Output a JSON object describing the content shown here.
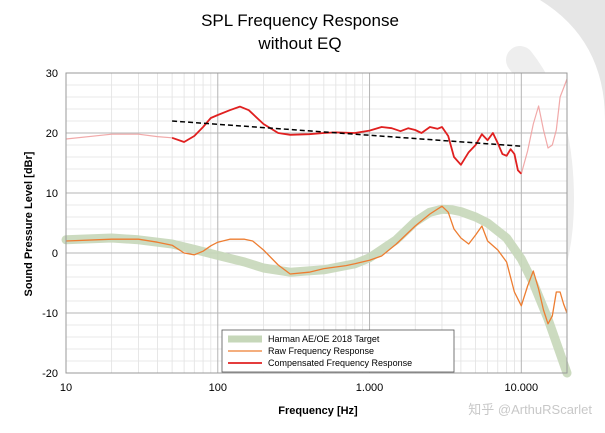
{
  "chart_data": {
    "type": "line",
    "title": [
      "SPL Frequency Response",
      "without EQ"
    ],
    "xlabel": "Frequency [Hz]",
    "ylabel": "Sound Pressure Level [dBr]",
    "xscale": "log",
    "xlim": [
      10,
      20000
    ],
    "ylim": [
      -20,
      30
    ],
    "x_ticks": [
      10,
      100,
      1000,
      10000
    ],
    "x_tick_labels": [
      "10",
      "100",
      "1.000",
      "10.000"
    ],
    "y_ticks": [
      -20,
      -10,
      0,
      10,
      20,
      30
    ],
    "y_tick_labels": [
      "-20",
      "-10",
      "0",
      "10",
      "20",
      "30"
    ],
    "grid": true,
    "legend_placement": "bottom-center",
    "series": [
      {
        "name": "Harman AE/OE 2018 Target",
        "color": "#c6d7b9",
        "style": "thick",
        "points": [
          [
            10,
            2.2
          ],
          [
            20,
            2.5
          ],
          [
            30,
            2.2
          ],
          [
            50,
            1.5
          ],
          [
            70,
            0.6
          ],
          [
            100,
            -0.4
          ],
          [
            150,
            -1.5
          ],
          [
            200,
            -2.5
          ],
          [
            300,
            -3.2
          ],
          [
            500,
            -2.8
          ],
          [
            800,
            -1.8
          ],
          [
            1000,
            -0.8
          ],
          [
            1500,
            2.2
          ],
          [
            2000,
            5.2
          ],
          [
            2500,
            6.8
          ],
          [
            3000,
            7.3
          ],
          [
            3500,
            7.2
          ],
          [
            4000,
            6.9
          ],
          [
            5000,
            6.0
          ],
          [
            6000,
            5.0
          ],
          [
            8000,
            2.5
          ],
          [
            10000,
            -1.0
          ],
          [
            12000,
            -5.0
          ],
          [
            15000,
            -11.0
          ],
          [
            20000,
            -20.0
          ]
        ]
      },
      {
        "name": "Raw Frequency Response",
        "color": "#ed7d31",
        "style": "thin",
        "points": [
          [
            10,
            2.0
          ],
          [
            20,
            2.3
          ],
          [
            30,
            2.3
          ],
          [
            40,
            1.8
          ],
          [
            50,
            1.3
          ],
          [
            60,
            0.0
          ],
          [
            70,
            -0.3
          ],
          [
            80,
            0.3
          ],
          [
            90,
            1.2
          ],
          [
            100,
            1.8
          ],
          [
            120,
            2.3
          ],
          [
            150,
            2.3
          ],
          [
            170,
            2.0
          ],
          [
            200,
            0.5
          ],
          [
            250,
            -2.0
          ],
          [
            300,
            -3.5
          ],
          [
            400,
            -3.2
          ],
          [
            500,
            -2.6
          ],
          [
            700,
            -2.1
          ],
          [
            800,
            -1.8
          ],
          [
            1000,
            -1.2
          ],
          [
            1200,
            -0.5
          ],
          [
            1500,
            1.5
          ],
          [
            2000,
            4.5
          ],
          [
            2500,
            6.5
          ],
          [
            3000,
            7.8
          ],
          [
            3300,
            6.8
          ],
          [
            3600,
            4.0
          ],
          [
            4000,
            2.5
          ],
          [
            4500,
            1.5
          ],
          [
            5000,
            3.0
          ],
          [
            5500,
            4.5
          ],
          [
            6000,
            2.0
          ],
          [
            7000,
            0.5
          ],
          [
            8000,
            -1.5
          ],
          [
            9000,
            -6.5
          ],
          [
            10000,
            -8.8
          ],
          [
            11000,
            -5.5
          ],
          [
            12000,
            -3.0
          ],
          [
            13000,
            -6.0
          ],
          [
            14000,
            -9.5
          ],
          [
            15000,
            -11.8
          ],
          [
            16000,
            -10.5
          ],
          [
            17000,
            -6.5
          ],
          [
            18000,
            -6.5
          ],
          [
            19000,
            -8.5
          ],
          [
            20000,
            -10.0
          ]
        ]
      },
      {
        "name": "Compensated Frequency Response",
        "color": "#e02020",
        "style": "medium",
        "points": [
          [
            10,
            19.0
          ],
          [
            20,
            19.8
          ],
          [
            30,
            19.8
          ],
          [
            40,
            19.4
          ],
          [
            50,
            19.2
          ],
          [
            60,
            18.5
          ],
          [
            70,
            19.5
          ],
          [
            80,
            21.0
          ],
          [
            90,
            22.5
          ],
          [
            100,
            23.0
          ],
          [
            120,
            23.8
          ],
          [
            140,
            24.4
          ],
          [
            160,
            23.8
          ],
          [
            200,
            21.5
          ],
          [
            250,
            20.0
          ],
          [
            300,
            19.7
          ],
          [
            400,
            19.8
          ],
          [
            500,
            20.0
          ],
          [
            600,
            20.1
          ],
          [
            800,
            20.0
          ],
          [
            1000,
            20.4
          ],
          [
            1200,
            21.0
          ],
          [
            1400,
            20.8
          ],
          [
            1600,
            20.3
          ],
          [
            1800,
            20.8
          ],
          [
            2000,
            20.5
          ],
          [
            2200,
            20.0
          ],
          [
            2500,
            21.0
          ],
          [
            2800,
            20.7
          ],
          [
            3000,
            21.0
          ],
          [
            3300,
            19.5
          ],
          [
            3600,
            16.0
          ],
          [
            4000,
            14.7
          ],
          [
            4500,
            16.8
          ],
          [
            5000,
            18.0
          ],
          [
            5500,
            19.8
          ],
          [
            6000,
            18.8
          ],
          [
            6500,
            20.0
          ],
          [
            7000,
            18.3
          ],
          [
            7500,
            16.5
          ],
          [
            8000,
            16.2
          ],
          [
            8500,
            17.3
          ],
          [
            9000,
            16.5
          ],
          [
            9500,
            13.8
          ],
          [
            10000,
            13.2
          ],
          [
            11000,
            17.0
          ],
          [
            12000,
            21.5
          ],
          [
            13000,
            24.5
          ],
          [
            14000,
            20.5
          ],
          [
            15000,
            17.5
          ],
          [
            16000,
            18.0
          ],
          [
            17000,
            20.5
          ],
          [
            18000,
            26.0
          ],
          [
            19000,
            27.5
          ],
          [
            20000,
            29.0
          ]
        ]
      },
      {
        "role": "trend",
        "color": "#000000",
        "style": "dashed",
        "points": [
          [
            50,
            22.0
          ],
          [
            10000,
            17.8
          ]
        ]
      }
    ],
    "compensated_emphasis_range": [
      50,
      10000
    ],
    "watermark": "知乎 @ArthuRScarlet"
  }
}
